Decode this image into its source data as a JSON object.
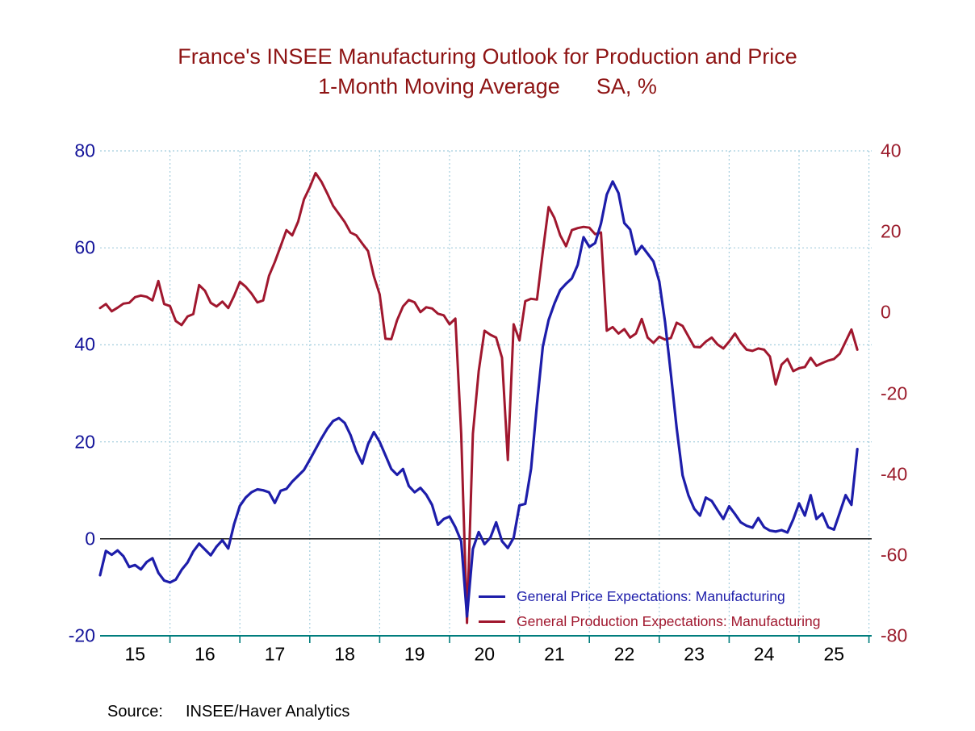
{
  "title": {
    "line1": "France's INSEE Manufacturing Outlook for Production and Price",
    "line2": "1-Month Moving Average      SA, %"
  },
  "source": {
    "label": "Source:",
    "value": "INSEE/Haver Analytics"
  },
  "legend": {
    "items": [
      {
        "label": "General Price Expectations: Manufacturing",
        "color": "#1d1daa"
      },
      {
        "label": "General Production Expectations: Manufacturing",
        "color": "#a0172e"
      }
    ]
  },
  "colors": {
    "background": "#ffffff",
    "title": "#8e1414",
    "grid": "#a5cede",
    "zero_line": "#000000",
    "x_axis": "#007d7d",
    "blue_line": "#1d1daa",
    "red_line": "#a0172e",
    "left_axis_labels": "#14149a",
    "right_axis_labels": "#9b1c2c",
    "year_labels": "#000000"
  },
  "chart_data": {
    "type": "line",
    "title": "France's INSEE Manufacturing Outlook for Production and Price",
    "subtitle": "1-Month Moving Average      SA, %",
    "x_unit": "monthly",
    "x_start": "2015-01",
    "x_end": "2025-11",
    "x_tick_labels": [
      "15",
      "16",
      "17",
      "18",
      "19",
      "20",
      "21",
      "22",
      "23",
      "24",
      "25"
    ],
    "grid": true,
    "legend_position": "inside-bottom-right",
    "left_axis": {
      "ticks": [
        80,
        60,
        40,
        20,
        0,
        -20
      ],
      "range": [
        -20,
        80
      ]
    },
    "right_axis": {
      "ticks": [
        40,
        20,
        0,
        -20,
        -40,
        -60,
        -80
      ],
      "range": [
        -80,
        40
      ]
    },
    "series": [
      {
        "name": "General Price Expectations: Manufacturing",
        "axis": "left",
        "color": "#1d1daa",
        "values": [
          -7.5,
          -2.5,
          -3.3,
          -2.4,
          -3.6,
          -5.8,
          -5.4,
          -6.3,
          -4.8,
          -4.0,
          -7.0,
          -8.6,
          -9.0,
          -8.4,
          -6.4,
          -4.9,
          -2.6,
          -1.0,
          -2.2,
          -3.4,
          -1.6,
          -0.3,
          -2.0,
          3.0,
          6.8,
          8.5,
          9.6,
          10.2,
          10.0,
          9.6,
          7.4,
          9.9,
          10.3,
          11.8,
          13.0,
          14.2,
          16.3,
          18.5,
          20.7,
          22.7,
          24.3,
          24.9,
          23.9,
          21.4,
          18.0,
          15.5,
          19.5,
          22.0,
          20.0,
          17.2,
          14.4,
          13.2,
          14.4,
          10.9,
          9.6,
          10.5,
          9.1,
          7.0,
          2.9,
          4.1,
          4.6,
          2.4,
          -0.5,
          -16.0,
          -2.1,
          1.4,
          -1.1,
          0.2,
          3.4,
          -0.5,
          -1.9,
          0.2,
          6.9,
          7.2,
          14.5,
          27.8,
          39.6,
          45.1,
          48.5,
          51.3,
          52.6,
          53.7,
          56.5,
          62.2,
          60.2,
          61.0,
          65.0,
          71.0,
          73.7,
          71.3,
          65.1,
          63.8,
          58.7,
          60.4,
          58.8,
          57.2,
          53.1,
          44.7,
          34.0,
          22.8,
          13.1,
          9.0,
          6.2,
          4.8,
          8.5,
          7.8,
          5.9,
          4.1,
          6.7,
          5.1,
          3.4,
          2.7,
          2.3,
          4.3,
          2.4,
          1.7,
          1.5,
          1.8,
          1.3,
          4.0,
          7.3,
          4.8,
          9.0,
          4.1,
          5.2,
          2.4,
          1.9,
          5.4,
          9.0,
          7.0,
          18.5
        ]
      },
      {
        "name": "General Production Expectations: Manufacturing",
        "axis": "right",
        "color": "#a0172e",
        "values": [
          1.1,
          2.1,
          0.3,
          1.2,
          2.2,
          2.4,
          3.8,
          4.2,
          3.9,
          3.0,
          7.8,
          2.1,
          1.6,
          -2.1,
          -3.1,
          -1.0,
          -0.4,
          6.8,
          5.4,
          2.4,
          1.5,
          2.7,
          1.1,
          4.1,
          7.6,
          6.4,
          4.7,
          2.5,
          3.0,
          9.1,
          12.5,
          16.4,
          20.4,
          19.1,
          22.5,
          28.0,
          31.0,
          34.5,
          32.4,
          29.5,
          26.4,
          24.4,
          22.4,
          19.8,
          19.1,
          17.1,
          15.2,
          9.0,
          4.5,
          -6.5,
          -6.6,
          -1.9,
          1.5,
          3.1,
          2.5,
          0.1,
          1.3,
          1.0,
          -0.3,
          -0.7,
          -2.9,
          -1.5,
          -30.0,
          -76.8,
          -30.0,
          -14.5,
          -4.5,
          -5.5,
          -6.2,
          -11.2,
          -36.5,
          -2.9,
          -6.9,
          2.8,
          3.4,
          3.2,
          15.0,
          26.1,
          23.4,
          19.1,
          16.4,
          20.4,
          20.9,
          21.2,
          21.0,
          19.4,
          19.8,
          -4.5,
          -3.6,
          -5.2,
          -4.1,
          -6.2,
          -5.2,
          -1.6,
          -6.2,
          -7.5,
          -6.0,
          -6.7,
          -6.3,
          -2.5,
          -3.3,
          -5.9,
          -8.5,
          -8.6,
          -7.2,
          -6.2,
          -7.9,
          -8.9,
          -7.2,
          -5.2,
          -7.5,
          -9.2,
          -9.5,
          -8.9,
          -9.2,
          -10.9,
          -17.8,
          -12.9,
          -11.5,
          -14.5,
          -13.8,
          -13.5,
          -11.2,
          -13.2,
          -12.5,
          -11.9,
          -11.5,
          -10.2,
          -7.2,
          -4.2,
          -9.2
        ]
      }
    ]
  }
}
